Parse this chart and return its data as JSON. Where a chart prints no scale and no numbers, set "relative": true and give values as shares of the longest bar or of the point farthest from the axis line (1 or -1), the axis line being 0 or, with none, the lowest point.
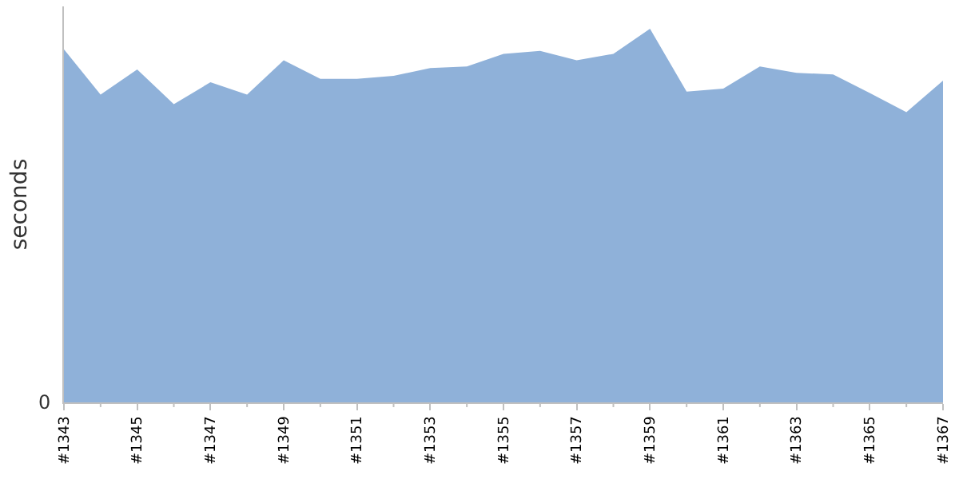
{
  "chart_data": {
    "type": "area",
    "ylabel": "seconds",
    "relative": true,
    "categories": [
      "#1343",
      null,
      "#1345",
      null,
      "#1347",
      null,
      "#1349",
      null,
      "#1351",
      null,
      "#1353",
      null,
      "#1355",
      null,
      "#1357",
      null,
      "#1359",
      null,
      "#1361",
      null,
      "#1363",
      null,
      "#1365",
      null,
      "#1367"
    ],
    "series": [
      {
        "color": "#8fb1d9",
        "values": [
          0.945,
          0.824,
          0.891,
          0.798,
          0.857,
          0.824,
          0.916,
          0.866,
          0.866,
          0.874,
          0.895,
          0.899,
          0.933,
          0.941,
          0.916,
          0.933,
          1,
          0.832,
          0.84,
          0.899,
          0.882,
          0.878,
          0.828,
          0.777,
          0.861
        ]
      }
    ],
    "annotations": [
      "0"
    ]
  }
}
